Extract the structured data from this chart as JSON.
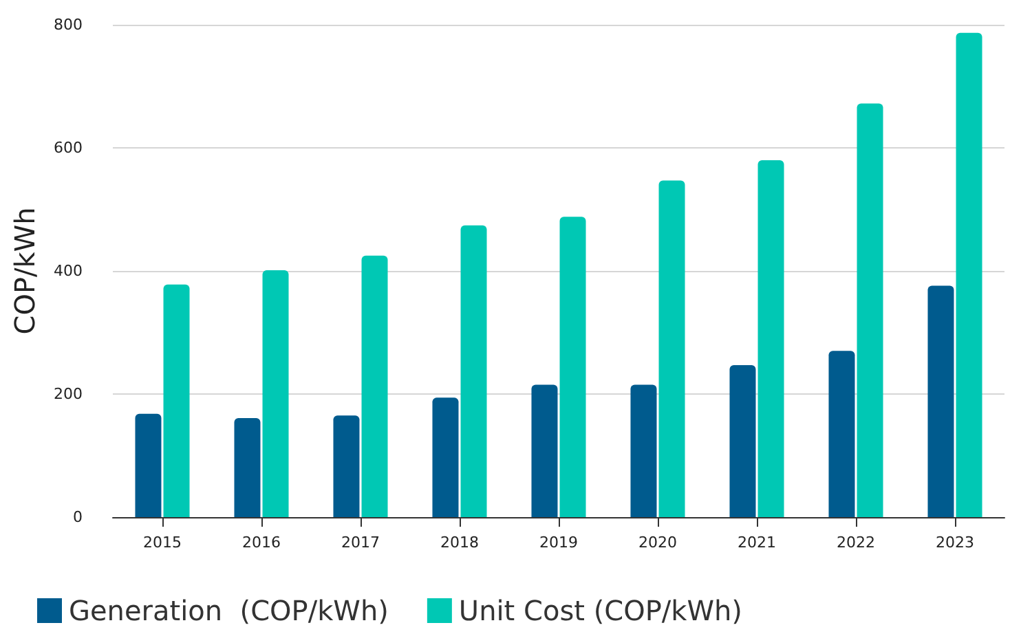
{
  "chart_data": {
    "type": "bar",
    "ylabel": "COP/kWh",
    "categories": [
      "2015",
      "2016",
      "2017",
      "2018",
      "2019",
      "2020",
      "2021",
      "2022",
      "2023"
    ],
    "series": [
      {
        "name": "Generation  (COP/kWh)",
        "color": "#005b8e",
        "values": [
          168,
          161,
          165,
          194,
          215,
          215,
          247,
          270,
          376
        ]
      },
      {
        "name": "Unit Cost (COP/kWh)",
        "color": "#00c8b4",
        "values": [
          378,
          401,
          425,
          474,
          488,
          547,
          580,
          672,
          787
        ]
      }
    ],
    "ylim": [
      0,
      800
    ],
    "yticks": [
      0,
      200,
      400,
      600,
      800
    ],
    "grid": "y",
    "legend": "bottom left"
  }
}
